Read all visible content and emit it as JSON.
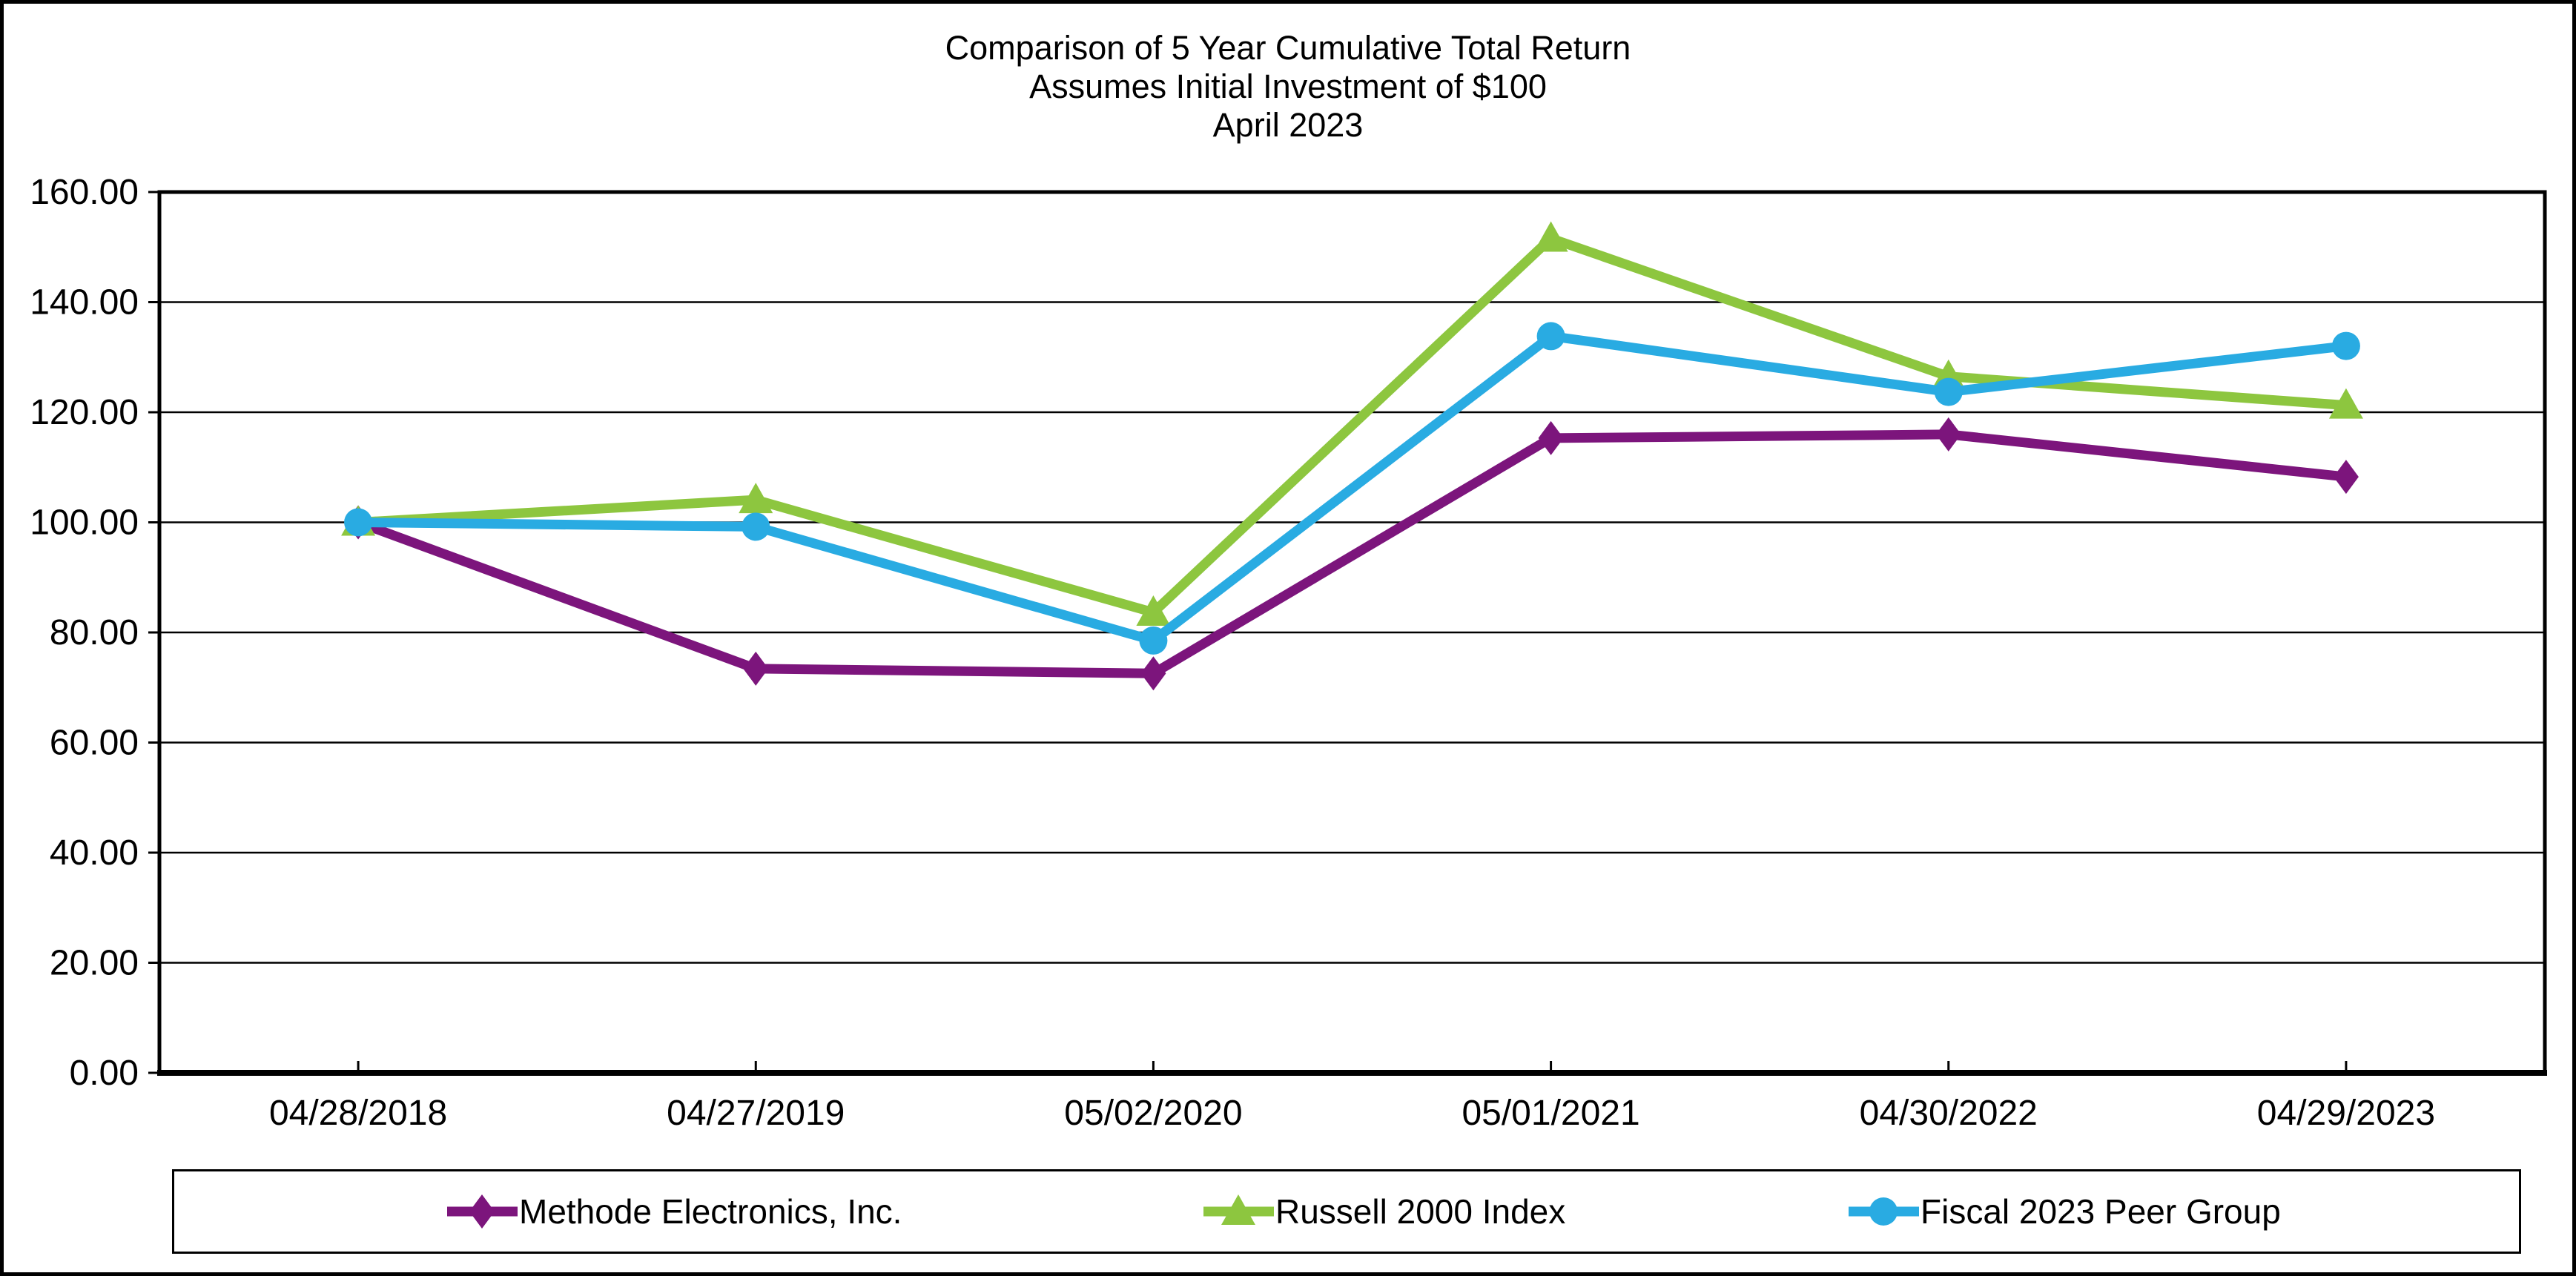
{
  "chart_data": {
    "type": "line",
    "title_lines": [
      "Comparison of 5 Year Cumulative Total Return",
      "Assumes Initial Investment of $100",
      "April 2023"
    ],
    "categories": [
      "04/28/2018",
      "04/27/2019",
      "05/02/2020",
      "05/01/2021",
      "04/30/2022",
      "04/29/2023"
    ],
    "series": [
      {
        "name": "Methode Electronics, Inc.",
        "color": "#7C157C",
        "marker": "diamond",
        "values": [
          100.0,
          73.42,
          72.56,
          115.3,
          115.97,
          108.27
        ]
      },
      {
        "name": "Russell 2000 Index",
        "color": "#8DC63F",
        "marker": "triangle",
        "values": [
          100.0,
          104.09,
          83.64,
          151.58,
          126.5,
          121.26
        ]
      },
      {
        "name": "Fiscal 2023 Peer Group",
        "color": "#29ABE2",
        "marker": "circle",
        "values": [
          100.0,
          99.21,
          78.53,
          133.82,
          123.69,
          132.04
        ]
      }
    ],
    "ylim": [
      0,
      160
    ],
    "yticks": [
      0,
      20,
      40,
      60,
      80,
      100,
      120,
      140,
      160
    ],
    "ytick_labels": [
      "0.00",
      "20.00",
      "40.00",
      "60.00",
      "80.00",
      "100.00",
      "120.00",
      "140.00",
      "160.00"
    ],
    "xlabel": "",
    "ylabel": "",
    "grid": "horizontal",
    "legend_position": "bottom",
    "axis_color": "#000000",
    "gridline_color": "#000000",
    "background_color": "#FFFFFF"
  }
}
